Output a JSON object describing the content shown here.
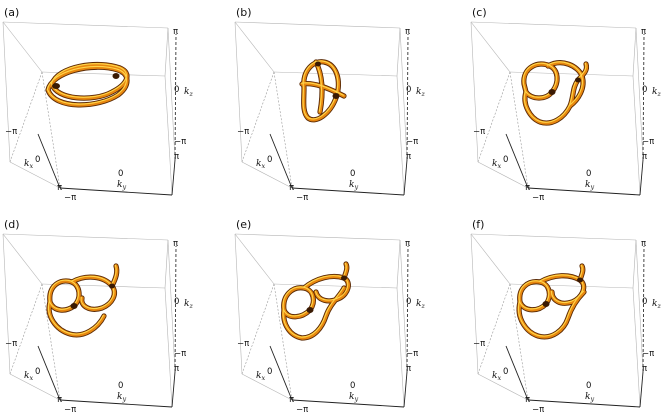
{
  "panels": [
    {
      "label": "(a)"
    },
    {
      "label": "(b)"
    },
    {
      "label": "(c)"
    },
    {
      "label": "(d)"
    },
    {
      "label": "(e)"
    },
    {
      "label": "(f)"
    }
  ],
  "axes": {
    "kx_label": "k",
    "kx_sub": "x",
    "ky_label": "k",
    "ky_sub": "y",
    "kz_label": "k",
    "kz_sub": "z",
    "tick_pi": "π",
    "tick_neg_pi": "−π",
    "tick_zero": "0"
  },
  "colors": {
    "tube_dark": "#5a2a05",
    "tube_mid": "#e8870f",
    "tube_highlight": "#ffd64a"
  }
}
